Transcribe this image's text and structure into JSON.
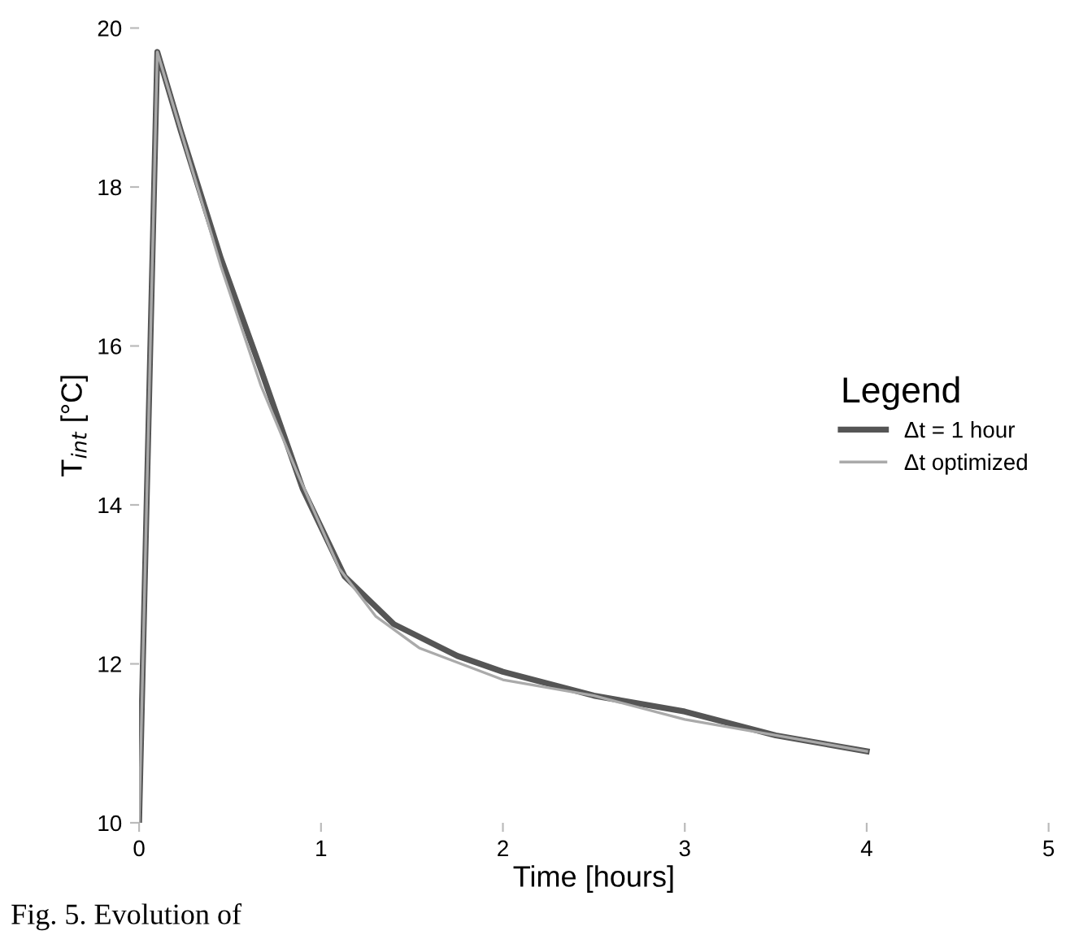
{
  "chart_data": {
    "type": "line",
    "xlabel": "Time [hours]",
    "ylabel": "T$_{int}$ [°C]",
    "legend_title": "Legend",
    "legend": "right",
    "xlim": [
      0,
      5
    ],
    "xticks": [
      0,
      1,
      2,
      3,
      4,
      5
    ],
    "ylim": [
      10,
      20
    ],
    "yticks": [
      10,
      12,
      14,
      16,
      18,
      20
    ],
    "grid": false,
    "line_style": "solid",
    "annotations": [
      "Fig. 5. Evolution of"
    ],
    "series": [
      {
        "name": "Δt = 1 hour",
        "color": "#555555",
        "x": [
          0,
          0.1,
          0.23,
          0.45,
          0.67,
          0.9,
          1.13,
          1.4,
          1.75,
          2.0,
          2.5,
          3.0,
          3.5,
          4.0
        ],
        "values": [
          10,
          19.7,
          18.7,
          17.1,
          15.7,
          14.2,
          13.1,
          12.5,
          12.1,
          11.9,
          11.6,
          11.4,
          11.1,
          10.9
        ]
      },
      {
        "name": "Δt optimized",
        "color": "#aaaaaa",
        "x": [
          0,
          0.1,
          0.23,
          0.45,
          0.67,
          0.87,
          1.1,
          1.3,
          1.54,
          2.0,
          2.5,
          3.0,
          3.5,
          4.0
        ],
        "values": [
          10,
          19.7,
          18.7,
          17.0,
          15.5,
          14.4,
          13.2,
          12.6,
          12.2,
          11.8,
          11.6,
          11.3,
          11.1,
          10.9
        ]
      }
    ]
  }
}
